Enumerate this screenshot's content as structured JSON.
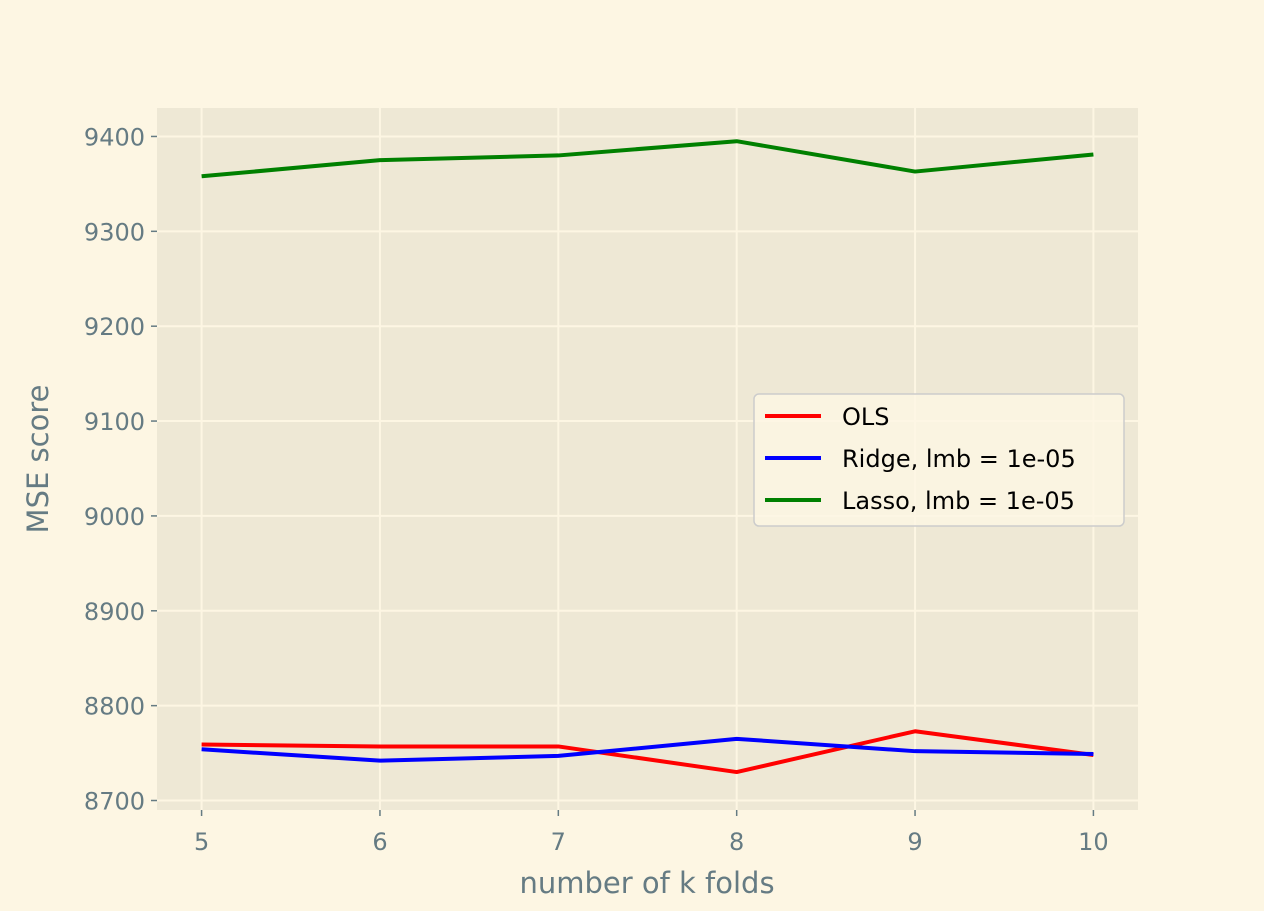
{
  "chart_data": {
    "type": "line",
    "title": "",
    "xlabel": "number of k folds",
    "ylabel": "MSE score",
    "x": [
      5,
      6,
      7,
      8,
      9,
      10
    ],
    "xticks": [
      "5",
      "6",
      "7",
      "8",
      "9",
      "10"
    ],
    "yticks": [
      "8700",
      "8800",
      "8900",
      "9000",
      "9100",
      "9200",
      "9300",
      "9400"
    ],
    "xlim": [
      4.75,
      10.25
    ],
    "ylim": [
      8690,
      9430
    ],
    "grid": true,
    "legend_position": "center-right",
    "series": [
      {
        "name": "OLS",
        "color": "#ff0000",
        "values": [
          8759,
          8757,
          8757,
          8730,
          8773,
          8748
        ]
      },
      {
        "name": "Ridge, lmb = 1e-05",
        "color": "#0000ff",
        "values": [
          8754,
          8742,
          8747,
          8765,
          8752,
          8749
        ]
      },
      {
        "name": "Lasso, lmb = 1e-05",
        "color": "#008000",
        "values": [
          9358,
          9375,
          9380,
          9395,
          9363,
          9381
        ]
      }
    ]
  }
}
